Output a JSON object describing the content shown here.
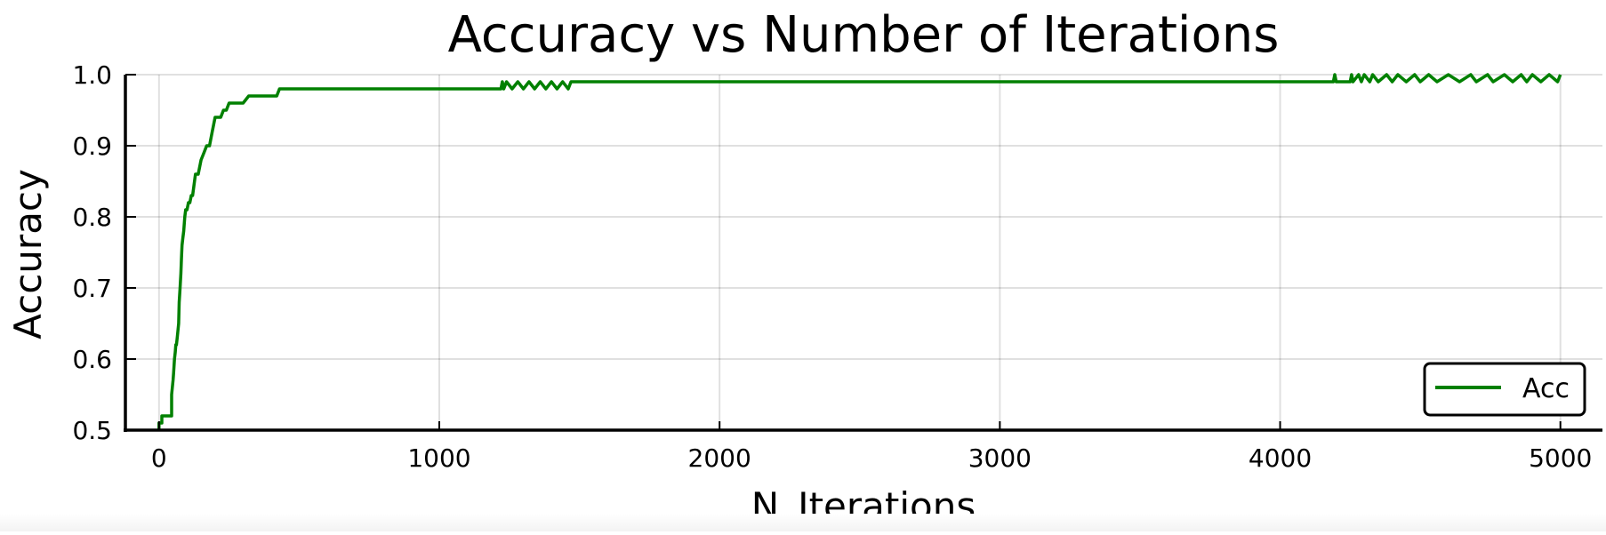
{
  "chart_data": {
    "type": "line",
    "title": "Accuracy vs Number of Iterations",
    "xlabel": "N_Iterations",
    "ylabel": "Accuracy",
    "xlim": [
      -120,
      5150
    ],
    "ylim": [
      0.5,
      1.0
    ],
    "x_ticks": [
      0,
      1000,
      2000,
      3000,
      4000,
      5000
    ],
    "y_ticks": [
      0.5,
      0.6,
      0.7,
      0.8,
      0.9,
      1.0
    ],
    "y_tick_labels": [
      "0.5",
      "0.6",
      "0.7",
      "0.8",
      "0.9",
      "1.0"
    ],
    "grid": true,
    "legend": {
      "position": "bottom-right",
      "entries": [
        "Acc"
      ]
    },
    "series": [
      {
        "name": "Acc",
        "color": "#008000",
        "x": [
          0,
          0,
          10,
          10,
          45,
          45,
          50,
          52,
          55,
          58,
          60,
          62,
          65,
          70,
          72,
          75,
          78,
          80,
          82,
          85,
          88,
          90,
          92,
          95,
          100,
          105,
          110,
          115,
          120,
          130,
          140,
          150,
          160,
          170,
          180,
          190,
          200,
          210,
          220,
          230,
          240,
          250,
          260,
          300,
          320,
          330,
          420,
          430,
          1220,
          1225,
          1230,
          1240,
          1260,
          1280,
          1300,
          1320,
          1340,
          1360,
          1380,
          1400,
          1420,
          1440,
          1460,
          1470,
          4190,
          4195,
          4200,
          4250,
          4255,
          4260,
          4280,
          4290,
          4300,
          4320,
          4330,
          4350,
          4380,
          4400,
          4420,
          4450,
          4480,
          4500,
          4530,
          4560,
          4600,
          4640,
          4680,
          4700,
          4740,
          4760,
          4800,
          4830,
          4860,
          4880,
          4900,
          4930,
          4960,
          4990,
          5000
        ],
        "values": [
          0.5,
          0.51,
          0.51,
          0.52,
          0.52,
          0.55,
          0.57,
          0.58,
          0.6,
          0.61,
          0.62,
          0.62,
          0.63,
          0.65,
          0.68,
          0.7,
          0.72,
          0.74,
          0.76,
          0.77,
          0.78,
          0.79,
          0.8,
          0.81,
          0.81,
          0.82,
          0.82,
          0.83,
          0.83,
          0.86,
          0.86,
          0.88,
          0.89,
          0.9,
          0.9,
          0.92,
          0.94,
          0.94,
          0.94,
          0.95,
          0.95,
          0.96,
          0.96,
          0.96,
          0.97,
          0.97,
          0.97,
          0.98,
          0.98,
          0.99,
          0.98,
          0.99,
          0.98,
          0.99,
          0.98,
          0.99,
          0.98,
          0.99,
          0.98,
          0.99,
          0.98,
          0.99,
          0.98,
          0.99,
          0.99,
          1.0,
          0.99,
          0.99,
          1.0,
          0.99,
          1.0,
          0.99,
          1.0,
          0.99,
          1.0,
          0.99,
          1.0,
          0.99,
          1.0,
          0.99,
          1.0,
          0.99,
          1.0,
          0.99,
          1.0,
          0.99,
          1.0,
          0.99,
          1.0,
          0.99,
          1.0,
          0.99,
          1.0,
          0.99,
          1.0,
          0.99,
          1.0,
          0.99,
          1.0
        ]
      }
    ]
  }
}
